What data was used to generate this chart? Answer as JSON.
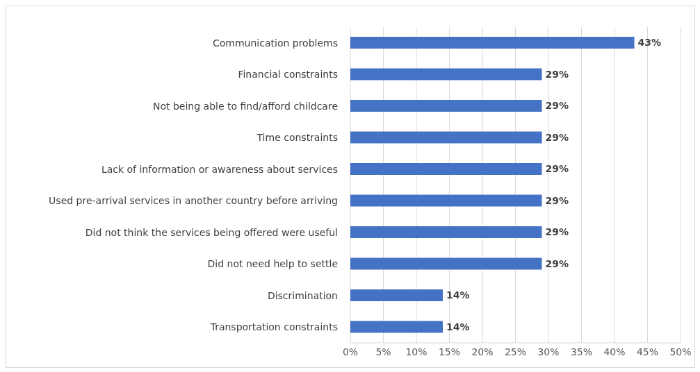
{
  "chart_data": {
    "type": "bar",
    "orientation": "horizontal",
    "categories": [
      "Communication problems",
      "Financial constraints",
      "Not being able to find/afford childcare",
      "Time constraints",
      "Lack of information or awareness about services",
      "Used pre-arrival services in another country before arriving",
      "Did not think the services being offered were useful",
      "Did not need help to settle",
      "Discrimination",
      "Transportation constraints"
    ],
    "values": [
      43,
      29,
      29,
      29,
      29,
      29,
      29,
      29,
      14,
      14
    ],
    "value_labels": [
      "43%",
      "29%",
      "29%",
      "29%",
      "29%",
      "29%",
      "29%",
      "29%",
      "14%",
      "14%"
    ],
    "color": "#4472c4",
    "xlim": [
      0,
      50
    ],
    "xticks": [
      {
        "value": 0,
        "label": "0%"
      },
      {
        "value": 5,
        "label": "5%"
      },
      {
        "value": 10,
        "label": "10%"
      },
      {
        "value": 15,
        "label": "15%"
      },
      {
        "value": 20,
        "label": "20%"
      },
      {
        "value": 25,
        "label": "25%"
      },
      {
        "value": 30,
        "label": "30%"
      },
      {
        "value": 35,
        "label": "35%"
      },
      {
        "value": 40,
        "label": "40%"
      },
      {
        "value": 45,
        "label": "45%"
      },
      {
        "value": 50,
        "label": "50%"
      }
    ],
    "grid": "x",
    "legend": false
  }
}
